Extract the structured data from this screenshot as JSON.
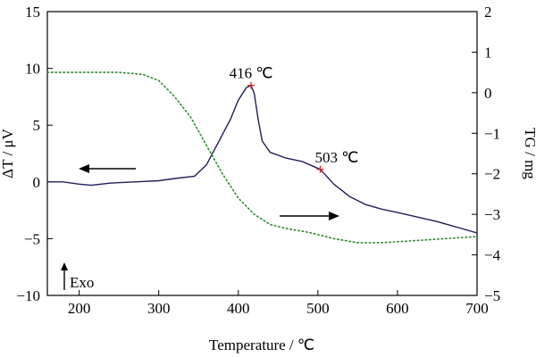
{
  "chart_data": {
    "type": "line",
    "xlabel": "Temperature / ℃",
    "ylabel_left": "ΔT / μV",
    "ylabel_right": "TG / mg",
    "xlim": [
      160,
      700
    ],
    "ylim_left": [
      -10,
      15
    ],
    "ylim_right": [
      -5,
      2
    ],
    "x_ticks": [
      "200",
      "300",
      "400",
      "500",
      "600",
      "700"
    ],
    "y_left_ticks": [
      "−10",
      "−5",
      "0",
      "5",
      "10",
      "15"
    ],
    "y_right_ticks": [
      "−5",
      "−4",
      "−3",
      "−2",
      "−1",
      "0",
      "1",
      "2"
    ],
    "grid": false,
    "series": [
      {
        "axis": "left",
        "color": "#1f1f5c",
        "style": "solid",
        "points": [
          [
            160,
            0.0
          ],
          [
            180,
            0.0
          ],
          [
            200,
            -0.2
          ],
          [
            215,
            -0.3
          ],
          [
            240,
            -0.1
          ],
          [
            270,
            0.0
          ],
          [
            300,
            0.1
          ],
          [
            320,
            0.3
          ],
          [
            345,
            0.5
          ],
          [
            360,
            1.5
          ],
          [
            375,
            3.5
          ],
          [
            390,
            5.5
          ],
          [
            400,
            7.2
          ],
          [
            410,
            8.3
          ],
          [
            416,
            8.5
          ],
          [
            420,
            7.8
          ],
          [
            425,
            5.5
          ],
          [
            430,
            3.6
          ],
          [
            440,
            2.6
          ],
          [
            460,
            2.1
          ],
          [
            480,
            1.8
          ],
          [
            490,
            1.5
          ],
          [
            503,
            1.1
          ],
          [
            520,
            -0.2
          ],
          [
            540,
            -1.3
          ],
          [
            560,
            -2.0
          ],
          [
            580,
            -2.4
          ],
          [
            600,
            -2.7
          ],
          [
            650,
            -3.5
          ],
          [
            700,
            -4.5
          ]
        ]
      },
      {
        "axis": "right",
        "color": "#2e8b2e",
        "style": "dotted",
        "points": [
          [
            160,
            0.5
          ],
          [
            200,
            0.5
          ],
          [
            250,
            0.5
          ],
          [
            280,
            0.45
          ],
          [
            300,
            0.3
          ],
          [
            320,
            -0.1
          ],
          [
            340,
            -0.6
          ],
          [
            360,
            -1.3
          ],
          [
            380,
            -2.0
          ],
          [
            400,
            -2.6
          ],
          [
            420,
            -3.0
          ],
          [
            440,
            -3.25
          ],
          [
            460,
            -3.35
          ],
          [
            490,
            -3.45
          ],
          [
            520,
            -3.6
          ],
          [
            550,
            -3.7
          ],
          [
            580,
            -3.7
          ],
          [
            620,
            -3.65
          ],
          [
            660,
            -3.6
          ],
          [
            700,
            -3.55
          ]
        ]
      }
    ],
    "annotations": [
      {
        "label": "416 ℃",
        "x": 416,
        "y": 8.5
      },
      {
        "label": "503 ℃",
        "x": 503,
        "y": 1.1
      }
    ],
    "exo_label": "Exo"
  }
}
